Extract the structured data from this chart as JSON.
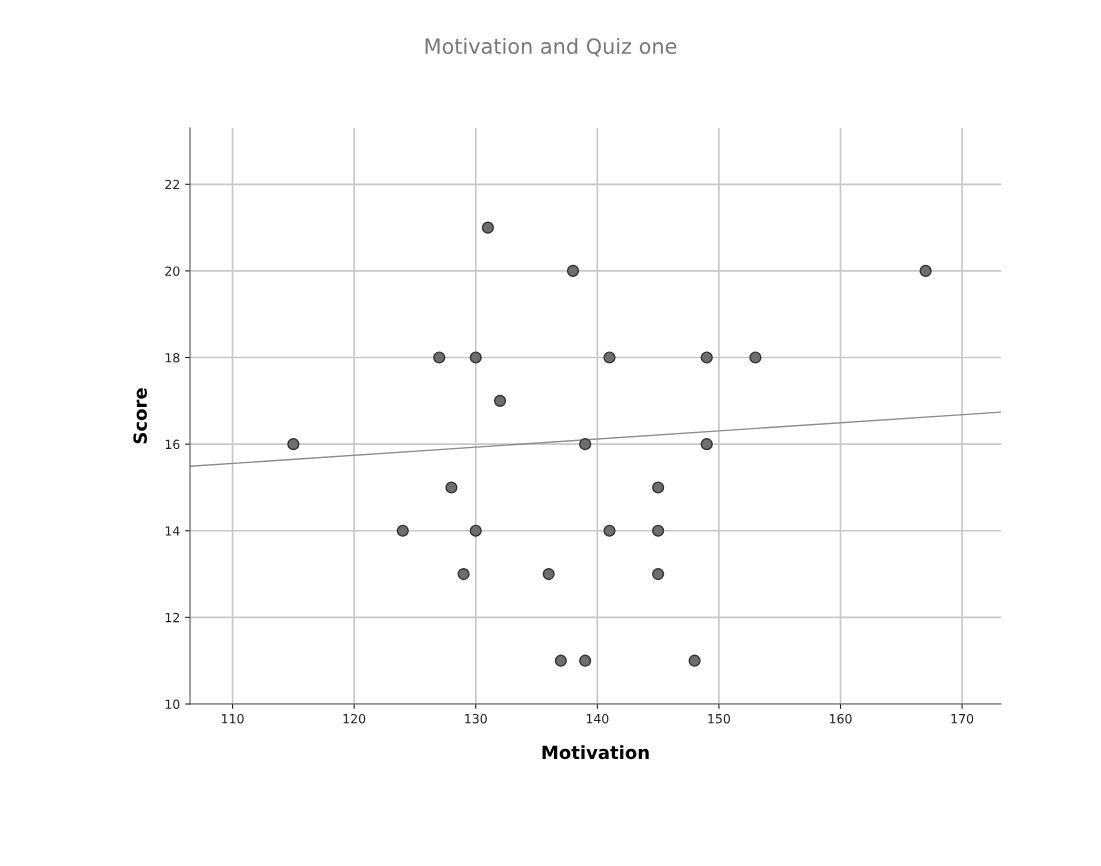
{
  "chart_data": {
    "type": "scatter",
    "title": "Motivation and Quiz one",
    "xlabel": "Motivation",
    "ylabel": "Score",
    "xlim": [
      106.5,
      173.2
    ],
    "xticks": [
      110,
      120,
      130,
      140,
      150,
      160,
      170
    ],
    "ylim": [
      10,
      23.3
    ],
    "yticks": [
      10,
      12,
      14,
      16,
      18,
      20,
      22
    ],
    "grid": true,
    "legend": false,
    "series": [
      {
        "marker": "circle",
        "color": "#6e6e6e",
        "x": [
          115,
          124,
          127,
          128,
          129,
          130,
          130,
          131,
          132,
          136,
          137,
          138,
          139,
          139,
          141,
          141,
          145,
          145,
          145,
          148,
          149,
          149,
          153,
          167
        ],
        "values": [
          16,
          14,
          18,
          15,
          13,
          18,
          14,
          21,
          17,
          13,
          11,
          20,
          16,
          11,
          18,
          14,
          15,
          14,
          13,
          11,
          18,
          16,
          18,
          20
        ]
      },
      {
        "type": "line",
        "marker": "none",
        "color": "#8c8c8c",
        "x": [
          106.5,
          173.2
        ],
        "values": [
          15.49,
          16.74
        ]
      }
    ]
  }
}
